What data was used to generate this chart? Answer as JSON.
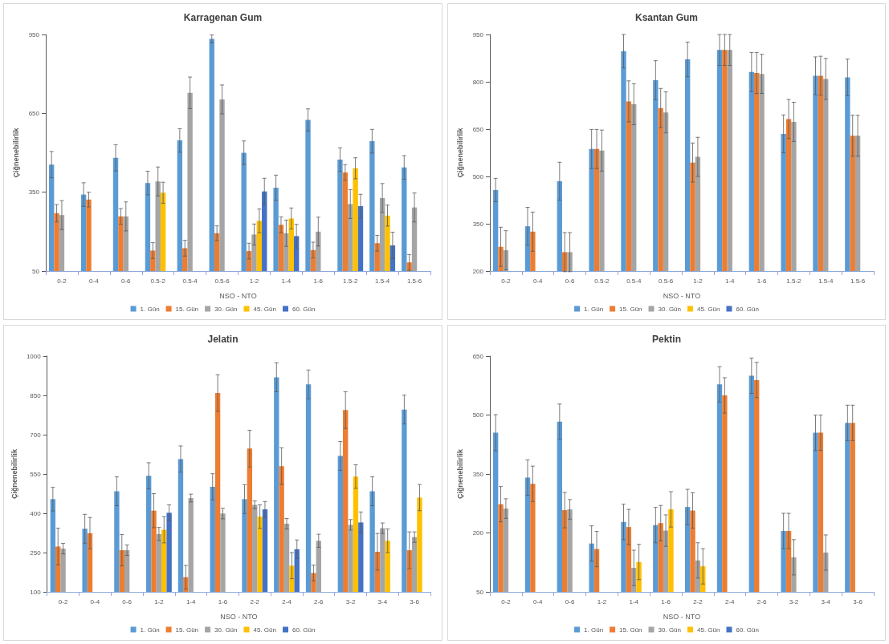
{
  "chart_data": [
    {
      "type": "bar",
      "title": "Karragenan Gum",
      "xlabel": "NSO - NTO",
      "ylabel": "Çiğnenebilirlik",
      "categories": [
        "0-2",
        "0-4",
        "0-6",
        "0.5-2",
        "0.5-4",
        "0.5-6",
        "1-2",
        "1-4",
        "1-6",
        "1.5-2",
        "1.5-4",
        "1.5-6"
      ],
      "ylim": [
        50,
        950
      ],
      "yticks": [
        50,
        350,
        650,
        950
      ],
      "grid": false,
      "legend": "bottom",
      "series": [
        {
          "name": "1. Gün",
          "color": "#5b9bd5",
          "values": [
            455,
            341,
            481,
            385,
            547,
            933,
            500,
            367,
            625,
            474,
            544,
            444
          ],
          "errors": [
            50,
            45,
            50,
            45,
            45,
            15,
            45,
            48,
            42,
            45,
            45,
            45
          ]
        },
        {
          "name": "15. Gün",
          "color": "#ed7d31",
          "values": [
            270,
            322,
            258,
            128,
            137,
            194,
            126,
            226,
            130,
            425,
            156,
            83
          ],
          "errors": [
            33,
            28,
            30,
            30,
            30,
            28,
            30,
            30,
            30,
            30,
            30,
            30
          ]
        },
        {
          "name": "30. Gün",
          "color": "#a5a5a5",
          "values": [
            263,
            null,
            258,
            391,
            728,
            703,
            189,
            194,
            200,
            305,
            328,
            292
          ],
          "errors": [
            55,
            null,
            55,
            55,
            60,
            55,
            40,
            50,
            55,
            55,
            55,
            55
          ]
        },
        {
          "name": "45. Gün",
          "color": "#ffc000",
          "values": [
            null,
            null,
            null,
            348,
            null,
            null,
            241,
            250,
            null,
            441,
            261,
            null
          ],
          "errors": [
            null,
            null,
            null,
            40,
            null,
            null,
            45,
            40,
            null,
            40,
            40,
            null
          ]
        },
        {
          "name": "60. Gün",
          "color": "#4472c4",
          "values": [
            null,
            null,
            null,
            null,
            null,
            null,
            353,
            183,
            null,
            297,
            148,
            null
          ],
          "errors": [
            null,
            null,
            null,
            null,
            null,
            null,
            50,
            45,
            null,
            45,
            50,
            null
          ]
        }
      ]
    },
    {
      "type": "bar",
      "title": "Ksantan Gum",
      "xlabel": "NSO - NTO",
      "ylabel": "Çiğnenebilirlik",
      "categories": [
        "0-2",
        "0-4",
        "0-6",
        "0.5-2",
        "0.5-4",
        "0.5-6",
        "1-2",
        "1-4",
        "1-6",
        "1.5-2",
        "1.5-4",
        "1.5-6"
      ],
      "ylim": [
        200,
        950
      ],
      "yticks": [
        200,
        350,
        500,
        650,
        800,
        950
      ],
      "grid": false,
      "legend": "bottom",
      "series": [
        {
          "name": "1. Gün",
          "color": "#5b9bd5",
          "values": [
            457,
            342,
            485,
            587,
            897,
            805,
            871,
            901,
            831,
            635,
            819,
            814
          ],
          "errors": [
            37,
            60,
            60,
            62,
            53,
            62,
            55,
            49,
            62,
            60,
            60,
            58
          ]
        },
        {
          "name": "15. Gün",
          "color": "#ed7d31",
          "values": [
            277,
            325,
            260,
            587,
            738,
            717,
            544,
            901,
            828,
            682,
            819,
            629
          ],
          "errors": [
            62,
            62,
            62,
            62,
            65,
            62,
            62,
            49,
            65,
            62,
            62,
            65
          ]
        },
        {
          "name": "30. Gün",
          "color": "#a5a5a5",
          "values": [
            266,
            null,
            260,
            582,
            729,
            703,
            562,
            901,
            825,
            673,
            809,
            629
          ],
          "errors": [
            62,
            null,
            62,
            65,
            65,
            65,
            62,
            49,
            62,
            62,
            65,
            65
          ]
        },
        {
          "name": "45. Gün",
          "color": "#ffc000",
          "values": [
            null,
            null,
            null,
            null,
            null,
            null,
            null,
            null,
            null,
            null,
            null,
            null
          ]
        },
        {
          "name": "60. Gün",
          "color": "#4472c4",
          "values": [
            null,
            null,
            null,
            null,
            null,
            null,
            null,
            null,
            null,
            null,
            null,
            null
          ]
        }
      ]
    },
    {
      "type": "bar",
      "title": "Jelatin",
      "xlabel": "NSO - NTO",
      "ylabel": "Çiğnenebilirlik",
      "categories": [
        "0-2",
        "0-4",
        "0-6",
        "1-2",
        "1-4",
        "1-6",
        "2-2",
        "2-4",
        "2-6",
        "3-2",
        "3-4",
        "3-6"
      ],
      "ylim": [
        100,
        1000
      ],
      "yticks": [
        100,
        250,
        400,
        550,
        700,
        850,
        1000
      ],
      "grid": false,
      "legend": "bottom",
      "series": [
        {
          "name": "1. Gün",
          "color": "#5b9bd5",
          "values": [
            454,
            341,
            484,
            543,
            607,
            501,
            454,
            919,
            892,
            619,
            484,
            796
          ],
          "errors": [
            45,
            55,
            55,
            50,
            50,
            50,
            55,
            55,
            55,
            55,
            55,
            55
          ]
        },
        {
          "name": "15. Gün",
          "color": "#ed7d31",
          "values": [
            273,
            324,
            259,
            410,
            156,
            859,
            647,
            580,
            172,
            794,
            253,
            259
          ],
          "errors": [
            70,
            60,
            60,
            65,
            45,
            70,
            70,
            70,
            30,
            70,
            70,
            70
          ]
        },
        {
          "name": "30. Gün",
          "color": "#a5a5a5",
          "values": [
            265,
            null,
            259,
            321,
            458,
            399,
            432,
            360,
            295,
            356,
            343,
            309
          ],
          "errors": [
            20,
            null,
            20,
            25,
            15,
            20,
            15,
            20,
            25,
            20,
            20,
            20
          ]
        },
        {
          "name": "45. Gün",
          "color": "#ffc000",
          "values": [
            null,
            null,
            null,
            337,
            null,
            null,
            387,
            200,
            null,
            540,
            295,
            460
          ],
          "errors": [
            null,
            null,
            null,
            50,
            null,
            null,
            45,
            50,
            null,
            45,
            45,
            50
          ]
        },
        {
          "name": "60. Gün",
          "color": "#4472c4",
          "values": [
            null,
            null,
            null,
            402,
            null,
            null,
            415,
            263,
            null,
            365,
            null,
            null
          ],
          "errors": [
            null,
            null,
            null,
            30,
            null,
            null,
            30,
            35,
            null,
            40,
            null,
            null
          ]
        }
      ]
    },
    {
      "type": "bar",
      "title": "Pektin",
      "xlabel": "NSO - NTO",
      "ylabel": "Çiğnenebilirlik",
      "categories": [
        "0-2",
        "0-4",
        "0-6",
        "1-2",
        "1-4",
        "1-6",
        "2-2",
        "2-4",
        "2-6",
        "3-2",
        "3-4",
        "3-6"
      ],
      "ylim": [
        50,
        650
      ],
      "yticks": [
        50,
        200,
        350,
        500,
        650
      ],
      "grid": false,
      "legend": "bottom",
      "series": [
        {
          "name": "1. Gün",
          "color": "#5b9bd5",
          "values": [
            455,
            341,
            483,
            173,
            228,
            220,
            266,
            578,
            600,
            205,
            455,
            480
          ],
          "errors": [
            46,
            45,
            45,
            45,
            45,
            45,
            45,
            45,
            45,
            45,
            45,
            45
          ]
        },
        {
          "name": "15. Gün",
          "color": "#ed7d31",
          "values": [
            273,
            325,
            258,
            159,
            215,
            225,
            257,
            550,
            589,
            205,
            455,
            480
          ],
          "errors": [
            45,
            45,
            45,
            45,
            45,
            45,
            45,
            45,
            45,
            45,
            45,
            45
          ]
        },
        {
          "name": "30. Gün",
          "color": "#a5a5a5",
          "values": [
            262,
            null,
            260,
            null,
            111,
            206,
            130,
            null,
            null,
            138,
            150,
            null
          ],
          "errors": [
            25,
            null,
            25,
            null,
            45,
            40,
            45,
            null,
            null,
            45,
            45,
            null
          ]
        },
        {
          "name": "45. Gün",
          "color": "#ffc000",
          "values": [
            null,
            null,
            null,
            null,
            126,
            260,
            115,
            null,
            null,
            null,
            null,
            null
          ],
          "errors": [
            null,
            null,
            null,
            null,
            45,
            45,
            45,
            null,
            null,
            null,
            null,
            null
          ]
        },
        {
          "name": "60. Gün",
          "color": "#4472c4",
          "values": [
            null,
            null,
            null,
            null,
            null,
            null,
            null,
            null,
            null,
            null,
            null,
            null
          ]
        }
      ]
    }
  ]
}
